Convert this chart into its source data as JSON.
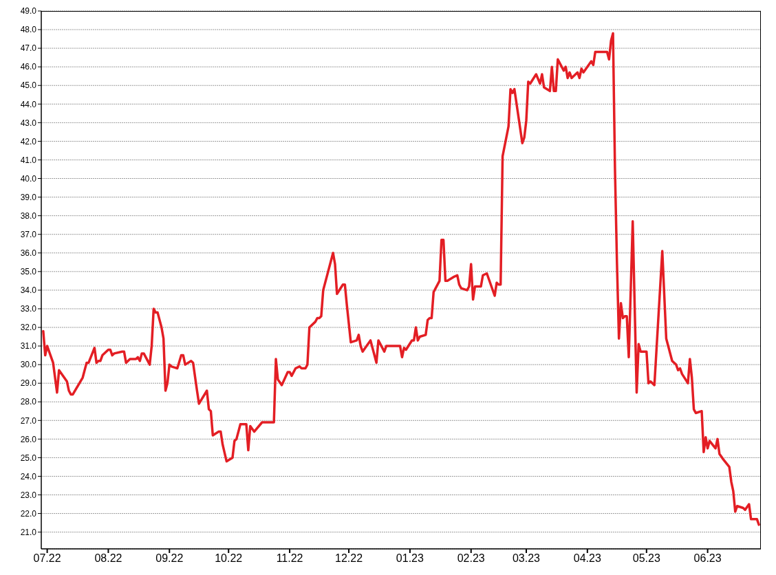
{
  "chart_data": {
    "type": "line",
    "x": [
      "2022-06-29",
      "2022-06-30",
      "2022-07-01",
      "2022-07-04",
      "2022-07-06",
      "2022-07-07",
      "2022-07-11",
      "2022-07-12",
      "2022-07-13",
      "2022-07-14",
      "2022-07-19",
      "2022-07-21",
      "2022-07-22",
      "2022-07-25",
      "2022-07-26",
      "2022-07-27",
      "2022-07-28",
      "2022-07-29",
      "2022-08-01",
      "2022-08-02",
      "2022-08-03",
      "2022-08-04",
      "2022-08-08",
      "2022-08-09",
      "2022-08-10",
      "2022-08-12",
      "2022-08-15",
      "2022-08-16",
      "2022-08-17",
      "2022-08-18",
      "2022-08-19",
      "2022-08-22",
      "2022-08-23",
      "2022-08-24",
      "2022-08-25",
      "2022-08-26",
      "2022-08-28",
      "2022-08-29",
      "2022-08-30",
      "2022-08-31",
      "2022-09-01",
      "2022-09-02",
      "2022-09-05",
      "2022-09-07",
      "2022-09-08",
      "2022-09-09",
      "2022-09-12",
      "2022-09-13",
      "2022-09-15",
      "2022-09-16",
      "2022-09-20",
      "2022-09-21",
      "2022-09-22",
      "2022-09-23",
      "2022-09-26",
      "2022-09-27",
      "2022-09-28",
      "2022-09-30",
      "2022-10-03",
      "2022-10-04",
      "2022-10-05",
      "2022-10-07",
      "2022-10-09",
      "2022-10-10",
      "2022-10-11",
      "2022-10-12",
      "2022-10-14",
      "2022-10-18",
      "2022-10-24",
      "2022-10-25",
      "2022-10-26",
      "2022-10-28",
      "2022-10-31",
      "2022-11-01",
      "2022-11-02",
      "2022-11-04",
      "2022-11-06",
      "2022-11-07",
      "2022-11-09",
      "2022-11-10",
      "2022-11-11",
      "2022-11-14",
      "2022-11-15",
      "2022-11-16",
      "2022-11-17",
      "2022-11-18",
      "2022-11-23",
      "2022-11-24",
      "2022-11-25",
      "2022-11-28",
      "2022-11-29",
      "2022-11-30",
      "2022-12-02",
      "2022-12-05",
      "2022-12-06",
      "2022-12-07",
      "2022-12-08",
      "2022-12-10",
      "2022-12-12",
      "2022-12-15",
      "2022-12-16",
      "2022-12-19",
      "2022-12-20",
      "2022-12-21",
      "2022-12-27",
      "2022-12-28",
      "2022-12-29",
      "2022-12-30",
      "2023-01-02",
      "2023-01-03",
      "2023-01-04",
      "2023-01-05",
      "2023-01-06",
      "2023-01-09",
      "2023-01-10",
      "2023-01-11",
      "2023-01-12",
      "2023-01-13",
      "2023-01-16",
      "2023-01-17",
      "2023-01-18",
      "2023-01-19",
      "2023-01-20",
      "2023-01-23",
      "2023-01-25",
      "2023-01-26",
      "2023-01-27",
      "2023-01-30",
      "2023-01-31",
      "2023-02-01",
      "2023-02-02",
      "2023-02-03",
      "2023-02-06",
      "2023-02-07",
      "2023-02-09",
      "2023-02-13",
      "2023-02-14",
      "2023-02-15",
      "2023-02-16",
      "2023-02-17",
      "2023-02-20",
      "2023-02-21",
      "2023-02-22",
      "2023-02-23",
      "2023-02-27",
      "2023-02-28",
      "2023-03-01",
      "2023-03-02",
      "2023-03-03",
      "2023-03-06",
      "2023-03-08",
      "2023-03-09",
      "2023-03-10",
      "2023-03-13",
      "2023-03-14",
      "2023-03-15",
      "2023-03-16",
      "2023-03-17",
      "2023-03-20",
      "2023-03-21",
      "2023-03-22",
      "2023-03-23",
      "2023-03-24",
      "2023-03-27",
      "2023-03-28",
      "2023-03-29",
      "2023-03-30",
      "2023-04-03",
      "2023-04-04",
      "2023-04-05",
      "2023-04-11",
      "2023-04-12",
      "2023-04-13",
      "2023-04-14",
      "2023-04-15",
      "2023-04-16",
      "2023-04-17",
      "2023-04-18",
      "2023-04-19",
      "2023-04-20",
      "2023-04-21",
      "2023-04-22",
      "2023-04-24",
      "2023-04-26",
      "2023-04-27",
      "2023-04-28",
      "2023-05-01",
      "2023-05-02",
      "2023-05-03",
      "2023-05-05",
      "2023-05-09",
      "2023-05-11",
      "2023-05-14",
      "2023-05-16",
      "2023-05-17",
      "2023-05-18",
      "2023-05-19",
      "2023-05-22",
      "2023-05-23",
      "2023-05-24",
      "2023-05-25",
      "2023-05-26",
      "2023-05-29",
      "2023-05-30",
      "2023-05-31",
      "2023-06-01",
      "2023-06-02",
      "2023-06-05",
      "2023-06-06",
      "2023-06-07",
      "2023-06-09",
      "2023-06-12",
      "2023-06-13",
      "2023-06-14",
      "2023-06-15",
      "2023-06-16",
      "2023-06-19",
      "2023-06-20",
      "2023-06-22",
      "2023-06-23",
      "2023-06-26",
      "2023-06-27"
    ],
    "series": [
      {
        "color": "#e31e24",
        "values": [
          31.8,
          30.5,
          31.0,
          30.1,
          28.5,
          29.7,
          29.1,
          28.6,
          28.4,
          28.4,
          29.3,
          30.1,
          30.1,
          30.9,
          30.1,
          30.2,
          30.2,
          30.5,
          30.8,
          30.8,
          30.5,
          30.6,
          30.7,
          30.7,
          30.1,
          30.3,
          30.3,
          30.4,
          30.2,
          30.6,
          30.6,
          30.0,
          31.0,
          33.0,
          32.8,
          32.8,
          32.0,
          31.4,
          28.6,
          29.0,
          30.0,
          29.9,
          29.8,
          30.5,
          30.5,
          30.0,
          30.2,
          30.1,
          28.6,
          27.9,
          28.6,
          27.6,
          27.5,
          26.2,
          26.4,
          26.4,
          25.7,
          24.8,
          25.0,
          25.9,
          26.0,
          26.8,
          26.8,
          26.8,
          25.4,
          26.7,
          26.4,
          26.9,
          26.9,
          30.3,
          29.2,
          28.9,
          29.6,
          29.6,
          29.4,
          29.8,
          29.9,
          29.8,
          29.8,
          30.0,
          32.0,
          32.3,
          32.5,
          32.5,
          32.6,
          34.0,
          36.0,
          35.4,
          33.8,
          34.3,
          34.3,
          33.2,
          31.2,
          31.3,
          31.6,
          31.0,
          30.7,
          31.0,
          31.3,
          30.1,
          31.3,
          30.7,
          31.0,
          31.0,
          31.0,
          30.4,
          30.9,
          30.8,
          31.3,
          31.3,
          32.0,
          31.3,
          31.5,
          31.6,
          32.4,
          32.5,
          32.5,
          33.9,
          34.5,
          36.7,
          36.7,
          34.5,
          34.5,
          34.7,
          34.8,
          34.3,
          34.1,
          34.0,
          34.2,
          35.4,
          33.5,
          34.2,
          34.2,
          34.8,
          34.9,
          33.7,
          34.4,
          34.3,
          34.3,
          41.2,
          42.8,
          44.8,
          44.6,
          44.8,
          41.9,
          42.2,
          43.1,
          45.2,
          45.1,
          45.6,
          45.1,
          45.6,
          44.9,
          44.7,
          46.0,
          44.7,
          44.7,
          46.4,
          45.8,
          46.0,
          45.4,
          45.7,
          45.4,
          45.7,
          45.4,
          45.9,
          45.7,
          46.3,
          46.1,
          46.8,
          46.8,
          46.4,
          47.4,
          47.8,
          40.5,
          35.5,
          31.4,
          33.3,
          32.5,
          32.6,
          32.6,
          30.4,
          37.7,
          28.5,
          31.1,
          30.7,
          30.7,
          29.0,
          29.1,
          28.9,
          36.1,
          31.4,
          30.2,
          30.0,
          29.7,
          29.8,
          29.5,
          29.0,
          30.3,
          29.3,
          27.6,
          27.4,
          27.5,
          25.3,
          26.1,
          25.5,
          25.9,
          25.5,
          26.0,
          25.2,
          24.9,
          24.5,
          23.7,
          23.2,
          22.1,
          22.4,
          22.3,
          22.2,
          22.5,
          21.7,
          21.7,
          21.4
        ]
      }
    ],
    "xlim": [
      "2022-06-28",
      "2023-06-28"
    ],
    "xticks": [
      {
        "value": "2022-07-01",
        "label": "07.22"
      },
      {
        "value": "2022-08-01",
        "label": "08.22"
      },
      {
        "value": "2022-09-01",
        "label": "09.22"
      },
      {
        "value": "2022-10-01",
        "label": "10.22"
      },
      {
        "value": "2022-11-01",
        "label": "11.22"
      },
      {
        "value": "2022-12-01",
        "label": "12.22"
      },
      {
        "value": "2023-01-01",
        "label": "01.23"
      },
      {
        "value": "2023-02-01",
        "label": "02.23"
      },
      {
        "value": "2023-03-01",
        "label": "03.23"
      },
      {
        "value": "2023-04-01",
        "label": "04.23"
      },
      {
        "value": "2023-05-01",
        "label": "05.23"
      },
      {
        "value": "2023-06-01",
        "label": "06.23"
      }
    ],
    "ylim": [
      20.1,
      49.0
    ],
    "yticks": [
      {
        "value": 21,
        "label": "21.0"
      },
      {
        "value": 22,
        "label": "22.0"
      },
      {
        "value": 23,
        "label": "23.0"
      },
      {
        "value": 24,
        "label": "24.0"
      },
      {
        "value": 25,
        "label": "25.0"
      },
      {
        "value": 26,
        "label": "26.0"
      },
      {
        "value": 27,
        "label": "27.0"
      },
      {
        "value": 28,
        "label": "28.0"
      },
      {
        "value": 29,
        "label": "29.0"
      },
      {
        "value": 30,
        "label": "30.0"
      },
      {
        "value": 31,
        "label": "31.0"
      },
      {
        "value": 32,
        "label": "32.0"
      },
      {
        "value": 33,
        "label": "33.0"
      },
      {
        "value": 34,
        "label": "34.0"
      },
      {
        "value": 35,
        "label": "35.0"
      },
      {
        "value": 36,
        "label": "36.0"
      },
      {
        "value": 37,
        "label": "37.0"
      },
      {
        "value": 38,
        "label": "38.0"
      },
      {
        "value": 39,
        "label": "39.0"
      },
      {
        "value": 40,
        "label": "40.0"
      },
      {
        "value": 41,
        "label": "41.0"
      },
      {
        "value": 42,
        "label": "42.0"
      },
      {
        "value": 43,
        "label": "43.0"
      },
      {
        "value": 44,
        "label": "44.0"
      },
      {
        "value": 45,
        "label": "45.0"
      },
      {
        "value": 46,
        "label": "46.0"
      },
      {
        "value": 47,
        "label": "47.0"
      },
      {
        "value": 48,
        "label": "48.0"
      },
      {
        "value": 49,
        "label": "49.0"
      }
    ],
    "grid": "y",
    "legend": false,
    "marker": "none",
    "line_style": "solid"
  }
}
